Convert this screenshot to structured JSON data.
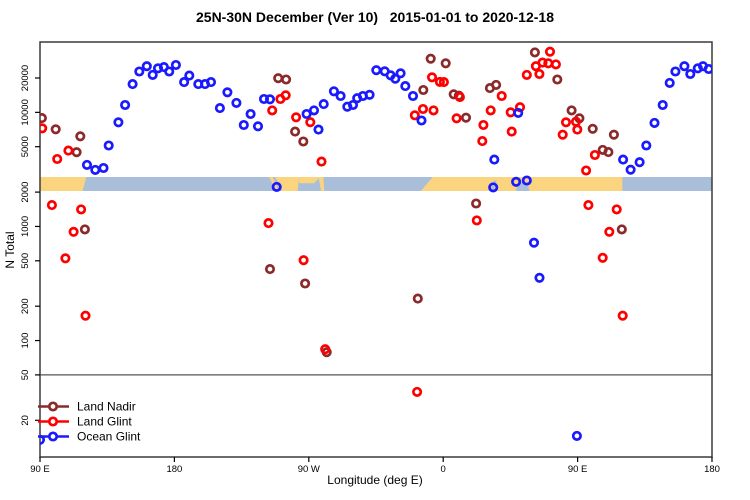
{
  "chart_data": {
    "type": "scatter",
    "title": "25N-30N December (Ver 10)   2015-01-01 to 2020-12-18",
    "xlabel": "Longitude (deg E)",
    "ylabel": "N Total",
    "x_axis": {
      "note": "x is degrees east of the left edge (left edge = 90E, wrapping eastward to 180)",
      "range_deg": [
        0,
        450
      ],
      "ticks": [
        {
          "d": 0,
          "label": "90 E"
        },
        {
          "d": 90,
          "label": "180"
        },
        {
          "d": 180,
          "label": "90 W"
        },
        {
          "d": 270,
          "label": "0"
        },
        {
          "d": 360,
          "label": "90 E"
        },
        {
          "d": 450,
          "label": "180"
        }
      ]
    },
    "y_axis": {
      "scale": "log10",
      "approx_range": [
        9.5,
        41000
      ],
      "ticks": [
        20,
        50,
        100,
        200,
        500,
        1000,
        2000,
        5000,
        10000,
        20000
      ]
    },
    "reference_line_y": 50,
    "legend": {
      "position": "bottom-left",
      "entries": [
        {
          "name": "Land Nadir",
          "color": "#8B2A2A"
        },
        {
          "name": "Land Glint",
          "color": "#FF0000"
        },
        {
          "name": "Ocean Glint",
          "color": "#1A1AFF"
        }
      ]
    },
    "surface_strip": {
      "description": "land/ocean band map of 25N-30N drawn across the 2000-count level",
      "land_color": "#FAD47E",
      "ocean_color": "#A9BED9",
      "land_polygons": [
        [
          [
            0,
            0
          ],
          [
            31,
            0
          ],
          [
            28.5,
            1
          ],
          [
            0,
            1
          ]
        ],
        [
          [
            153.5,
            0
          ],
          [
            155.8,
            0
          ],
          [
            160,
            1
          ],
          [
            157.8,
            1
          ]
        ],
        [
          [
            157.5,
            0
          ],
          [
            173.5,
            0
          ],
          [
            172.5,
            1
          ],
          [
            162,
            1
          ]
        ],
        [
          [
            173.5,
            0
          ],
          [
            187.5,
            0
          ],
          [
            183.5,
            0.45
          ],
          [
            173.5,
            0.45
          ]
        ],
        [
          [
            186.5,
            0
          ],
          [
            189.8,
            0
          ],
          [
            190.3,
            1
          ],
          [
            188.3,
            1
          ]
        ],
        [
          [
            263,
            0
          ],
          [
            390,
            0
          ],
          [
            390,
            1
          ],
          [
            255,
            1
          ]
        ]
      ],
      "ocean_notches": [
        [
          [
            301.5,
            1
          ],
          [
            304,
            0.25
          ],
          [
            305.8,
            0.25
          ],
          [
            303.8,
            1
          ]
        ],
        [
          [
            318.5,
            1
          ],
          [
            320.5,
            0.4
          ],
          [
            326.5,
            0.4
          ],
          [
            327.8,
            1
          ]
        ]
      ]
    },
    "series": [
      {
        "name": "Land Nadir",
        "color": "#8B2A2A",
        "marker": "open-circle",
        "points": [
          [
            1.3,
            8900
          ],
          [
            10.5,
            7100
          ],
          [
            24.5,
            4470
          ],
          [
            27,
            6170
          ],
          [
            30.1,
            943
          ],
          [
            159.5,
            19900
          ],
          [
            164.8,
            19400
          ],
          [
            170.8,
            6780
          ],
          [
            176.3,
            5550
          ],
          [
            154,
            423
          ],
          [
            177.5,
            316
          ],
          [
            192,
            79
          ],
          [
            253,
            233
          ],
          [
            256.7,
            15700
          ],
          [
            261.6,
            29500
          ],
          [
            271.7,
            26900
          ],
          [
            277,
            14400
          ],
          [
            280.5,
            14000
          ],
          [
            285.3,
            8980
          ],
          [
            292,
            1590
          ],
          [
            301.3,
            16300
          ],
          [
            305.4,
            17400
          ],
          [
            331.4,
            33500
          ],
          [
            346.4,
            19400
          ],
          [
            356,
            10400
          ],
          [
            361.2,
            8870
          ],
          [
            370.1,
            7180
          ],
          [
            376.8,
            4690
          ],
          [
            380.6,
            4480
          ],
          [
            384.3,
            6370
          ],
          [
            389.6,
            943
          ]
        ]
      },
      {
        "name": "Land Glint",
        "color": "#FF0000",
        "marker": "open-circle",
        "points": [
          [
            1.5,
            7250
          ],
          [
            11.5,
            3900
          ],
          [
            19,
            4620
          ],
          [
            8,
            1540
          ],
          [
            27.5,
            1410
          ],
          [
            22.5,
            898
          ],
          [
            17,
            526
          ],
          [
            30.5,
            165
          ],
          [
            153,
            1070
          ],
          [
            155.5,
            10400
          ],
          [
            161,
            13100
          ],
          [
            164.5,
            14100
          ],
          [
            171.5,
            9050
          ],
          [
            176.5,
            506
          ],
          [
            181,
            8200
          ],
          [
            188.5,
            3700
          ],
          [
            191,
            84
          ],
          [
            251,
            9430
          ],
          [
            252.5,
            35.5
          ],
          [
            256.5,
            10700
          ],
          [
            262.5,
            20300
          ],
          [
            263.5,
            10400
          ],
          [
            267.8,
            18500
          ],
          [
            270.5,
            18400
          ],
          [
            279,
            8870
          ],
          [
            281.2,
            13600
          ],
          [
            292.5,
            1130
          ],
          [
            296.2,
            5600
          ],
          [
            296.9,
            7750
          ],
          [
            301.8,
            10400
          ],
          [
            309.2,
            13900
          ],
          [
            315.2,
            10000
          ],
          [
            315.9,
            6780
          ],
          [
            321.4,
            11100
          ],
          [
            326,
            21300
          ],
          [
            332.1,
            25400
          ],
          [
            334.4,
            21700
          ],
          [
            336.5,
            27300
          ],
          [
            340.4,
            26900
          ],
          [
            341.5,
            34000
          ],
          [
            345.5,
            26300
          ],
          [
            350,
            6370
          ],
          [
            352.2,
            8180
          ],
          [
            358.9,
            8280
          ],
          [
            359.8,
            7060
          ],
          [
            365.7,
            3090
          ],
          [
            371.6,
            4230
          ],
          [
            367.2,
            1540
          ],
          [
            376.8,
            531
          ],
          [
            381.2,
            898
          ],
          [
            386.2,
            1410
          ],
          [
            390.2,
            165
          ]
        ]
      },
      {
        "name": "Ocean Glint",
        "color": "#1A1AFF",
        "marker": "open-circle",
        "points": [
          [
            0,
            13.5
          ],
          [
            31.5,
            3460
          ],
          [
            37,
            3130
          ],
          [
            42.5,
            3250
          ],
          [
            46,
            5120
          ],
          [
            52.5,
            8180
          ],
          [
            57,
            11600
          ],
          [
            62,
            17700
          ],
          [
            66.5,
            22800
          ],
          [
            71.5,
            25400
          ],
          [
            75.5,
            21300
          ],
          [
            79,
            24300
          ],
          [
            83,
            24900
          ],
          [
            86.5,
            22800
          ],
          [
            91,
            26000
          ],
          [
            96.5,
            18400
          ],
          [
            100,
            21000
          ],
          [
            106,
            17700
          ],
          [
            110.5,
            17700
          ],
          [
            114.5,
            18400
          ],
          [
            120.5,
            10900
          ],
          [
            125.5,
            15000
          ],
          [
            131.5,
            12100
          ],
          [
            136.5,
            7750
          ],
          [
            141,
            9680
          ],
          [
            146,
            7550
          ],
          [
            150,
            13100
          ],
          [
            154,
            13000
          ],
          [
            158.5,
            2220
          ],
          [
            178.5,
            9680
          ],
          [
            183.5,
            10400
          ],
          [
            186.5,
            7060
          ],
          [
            190,
            11800
          ],
          [
            196.8,
            15300
          ],
          [
            201.3,
            13900
          ],
          [
            205.8,
            11200
          ],
          [
            209.6,
            11600
          ],
          [
            212.4,
            13300
          ],
          [
            216.2,
            13900
          ],
          [
            220.7,
            14250
          ],
          [
            225.2,
            23400
          ],
          [
            230.8,
            22900
          ],
          [
            234.8,
            21100
          ],
          [
            237.9,
            19700
          ],
          [
            241.5,
            22000
          ],
          [
            244.6,
            17000
          ],
          [
            249.8,
            13900
          ],
          [
            255.5,
            8480
          ],
          [
            303.5,
            2200
          ],
          [
            304.2,
            3850
          ],
          [
            318.8,
            2460
          ],
          [
            320.2,
            9880
          ],
          [
            326,
            2530
          ],
          [
            330.8,
            721
          ],
          [
            334.5,
            355
          ],
          [
            359.5,
            14.6
          ],
          [
            390.5,
            3850
          ],
          [
            395.5,
            3140
          ],
          [
            401.5,
            3660
          ],
          [
            406,
            5120
          ],
          [
            411.5,
            8080
          ],
          [
            417,
            11600
          ],
          [
            421.7,
            18100
          ],
          [
            425.5,
            22800
          ],
          [
            431.5,
            25400
          ],
          [
            435.5,
            21700
          ],
          [
            440.5,
            24300
          ],
          [
            444,
            25400
          ],
          [
            447.8,
            24000
          ]
        ]
      }
    ]
  },
  "style_colors": {
    "plot_border": "#3A3A3A",
    "tick_color": "#000000",
    "reference_line": "#555555",
    "background": "#FFFFFF"
  }
}
